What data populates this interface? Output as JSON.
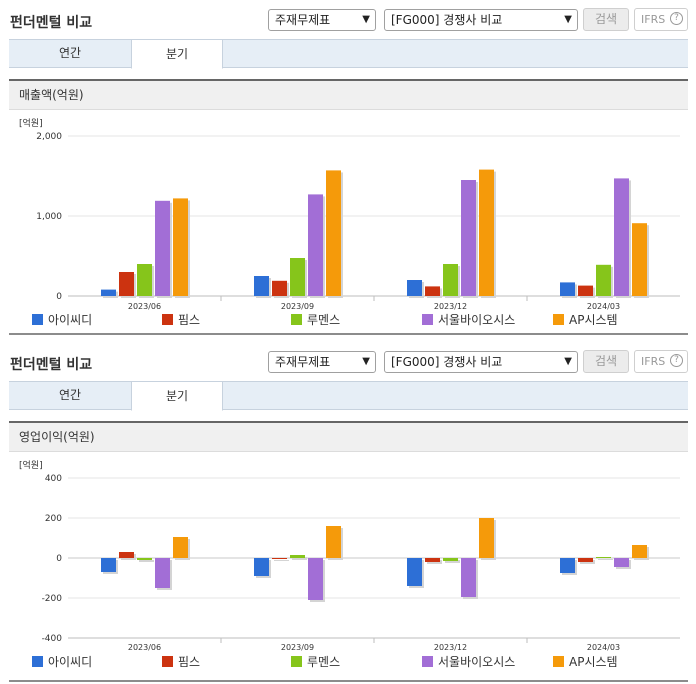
{
  "panels": [
    {
      "title": "펀더멘털 비교",
      "select1": "주재무제표",
      "select2": "[FG000] 경쟁사 비교",
      "search_label": "검색",
      "ifrs_label": "IFRS",
      "tabs": [
        "연간",
        "분기"
      ],
      "metric_title": "매출액(억원)"
    },
    {
      "title": "펀더멘털 비교",
      "select1": "주재무제표",
      "select2": "[FG000] 경쟁사 비교",
      "search_label": "검색",
      "ifrs_label": "IFRS",
      "tabs": [
        "연간",
        "분기"
      ],
      "metric_title": "영업이익(억원)"
    }
  ],
  "colors": {
    "아이씨디": "#2d6fd6",
    "핌스": "#cc3310",
    "루멘스": "#86c51b",
    "서울바이오시스": "#a26ed6",
    "AP시스템": "#f59a0a"
  },
  "chart_data": [
    {
      "type": "bar",
      "unit_label": "[억원]",
      "categories": [
        "2023/06",
        "2023/09",
        "2023/12",
        "2024/03"
      ],
      "ylim": [
        0,
        2000
      ],
      "yticks": [
        "0",
        "1,000",
        "2,000"
      ],
      "grid": true,
      "legend_position": "bottom",
      "series": [
        {
          "name": "아이씨디",
          "values": [
            80,
            250,
            200,
            170
          ]
        },
        {
          "name": "핌스",
          "values": [
            300,
            190,
            120,
            130
          ]
        },
        {
          "name": "루멘스",
          "values": [
            400,
            475,
            400,
            390
          ]
        },
        {
          "name": "서울바이오시스",
          "values": [
            1190,
            1270,
            1450,
            1470
          ]
        },
        {
          "name": "AP시스템",
          "values": [
            1220,
            1570,
            1580,
            910
          ]
        }
      ]
    },
    {
      "type": "bar",
      "unit_label": "[억원]",
      "categories": [
        "2023/06",
        "2023/09",
        "2023/12",
        "2024/03"
      ],
      "ylim": [
        -400,
        400
      ],
      "yticks": [
        "-400",
        "-200",
        "0",
        "200",
        "400"
      ],
      "grid": true,
      "legend_position": "bottom",
      "series": [
        {
          "name": "아이씨디",
          "values": [
            -70,
            -90,
            -140,
            -75
          ]
        },
        {
          "name": "핌스",
          "values": [
            30,
            -5,
            -20,
            -20
          ]
        },
        {
          "name": "루멘스",
          "values": [
            -10,
            15,
            -15,
            5
          ]
        },
        {
          "name": "서울바이오시스",
          "values": [
            -150,
            -210,
            -195,
            -45
          ]
        },
        {
          "name": "AP시스템",
          "values": [
            105,
            160,
            200,
            65
          ]
        }
      ]
    }
  ]
}
